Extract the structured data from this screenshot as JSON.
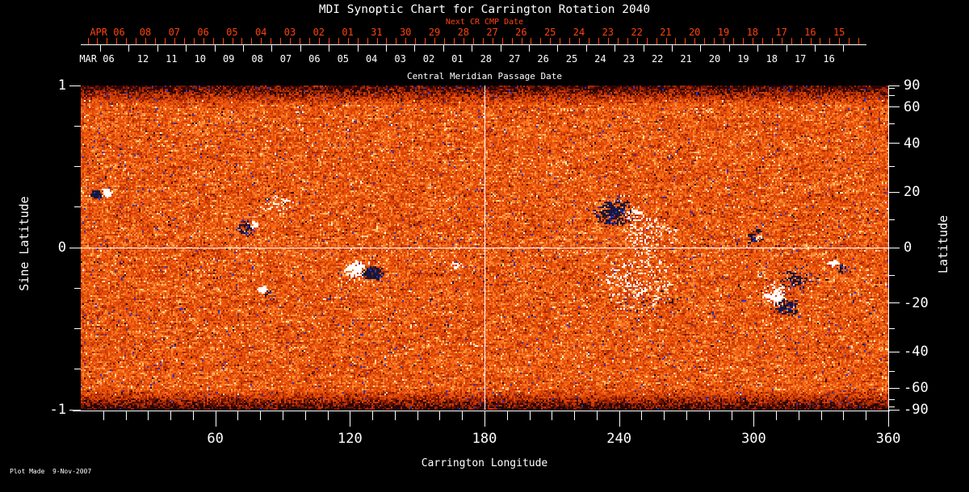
{
  "title": "MDI Synoptic Chart for Carrington Rotation 2040",
  "footer": "Plot Made  9-Nov-2007",
  "colors": {
    "background": "#000000",
    "foreground": "#ffffff",
    "next_cr_axis": "#ff430b"
  },
  "next_cr_axis": {
    "label": "Next CR CMP Date",
    "month_label": "APR 06",
    "day_labels": [
      "08",
      "07",
      "06",
      "05",
      "04",
      "03",
      "02",
      "01",
      "31",
      "30",
      "29",
      "28",
      "27",
      "26",
      "25",
      "24",
      "23",
      "22",
      "21",
      "20",
      "19",
      "18",
      "17",
      "16",
      "15"
    ]
  },
  "cmp_axis": {
    "label": "Central Meridian Passage Date",
    "month_label": "MAR 06",
    "day_labels": [
      "12",
      "11",
      "10",
      "09",
      "08",
      "07",
      "06",
      "05",
      "04",
      "03",
      "02",
      "01",
      "28",
      "27",
      "26",
      "25",
      "24",
      "23",
      "22",
      "21",
      "20",
      "19",
      "18",
      "17",
      "16"
    ]
  },
  "x_axis": {
    "label": "Carrington Longitude",
    "range_deg": [
      0,
      360
    ],
    "major_tick_values": [
      60,
      120,
      180,
      240,
      300,
      360
    ],
    "minor_tick_step_deg": 10
  },
  "y_axis_left": {
    "label": "Sine Latitude",
    "range": [
      -1,
      1
    ],
    "tick_labels": [
      "1",
      "0",
      "-1"
    ],
    "minor_tick_values": [
      0.75,
      0.5,
      0.25,
      -0.25,
      -0.5,
      -0.75
    ]
  },
  "y_axis_right": {
    "label": "Latitude",
    "tick_labels": [
      "90",
      "60",
      "40",
      "20",
      "0",
      "-20",
      "-40",
      "-60",
      "-90"
    ],
    "minor_tick_values": [
      80,
      70,
      50,
      30,
      10,
      -10,
      -30,
      -50,
      -70,
      -80
    ]
  },
  "chart_data": {
    "type": "heatmap",
    "title": "MDI Synoptic Chart for Carrington Rotation 2040",
    "description": "Solar photospheric magnetic field synoptic map; orange mottled quiet-sun field with dark (negative polarity) and white/yellow (positive polarity) active regions; darker streaked bands at both poles; white crosshair at longitude 180 and equator.",
    "x_range_deg": [
      0,
      360
    ],
    "y_range_sine_latitude": [
      -1,
      1
    ],
    "crosshair": {
      "longitude_deg": 180,
      "sine_latitude": 0
    },
    "palette": [
      {
        "max": -1.35,
        "color": "#141840"
      },
      {
        "max": -1.05,
        "color": "#2732c4"
      },
      {
        "max": -0.8,
        "color": "#2a0406"
      },
      {
        "max": -0.55,
        "color": "#6e1402"
      },
      {
        "max": -0.3,
        "color": "#a32602"
      },
      {
        "max": -0.08,
        "color": "#c93a04"
      },
      {
        "max": 0.18,
        "color": "#e04a08"
      },
      {
        "max": 0.42,
        "color": "#ef5c10"
      },
      {
        "max": 0.62,
        "color": "#f8751f"
      },
      {
        "max": 0.8,
        "color": "#fc9440"
      },
      {
        "max": 0.95,
        "color": "#ffc070"
      },
      {
        "max": 1.12,
        "color": "#ffe9a8"
      },
      {
        "max": 9999,
        "color": "#ffffff"
      }
    ],
    "active_regions": [
      {
        "lon": 6.5,
        "sine_lat": 0.33,
        "r_lon": 3.2,
        "r_sine_lat": 0.035,
        "polarity": "negative",
        "density": 0.85,
        "strength": 2.2
      },
      {
        "lon": 11,
        "sine_lat": 0.34,
        "r_lon": 2.8,
        "r_sine_lat": 0.03,
        "polarity": "positive",
        "density": 0.85,
        "strength": 2.2
      },
      {
        "lon": 73.5,
        "sine_lat": 0.12,
        "r_lon": 4.5,
        "r_sine_lat": 0.06,
        "polarity": "negative",
        "density": 0.4,
        "strength": 1.8
      },
      {
        "lon": 77,
        "sine_lat": 0.14,
        "r_lon": 2,
        "r_sine_lat": 0.025,
        "polarity": "positive",
        "density": 0.75,
        "strength": 2.0
      },
      {
        "lon": 87,
        "sine_lat": 0.27,
        "r_lon": 8,
        "r_sine_lat": 0.07,
        "polarity": "positive",
        "density": 0.2,
        "strength": 1.6
      },
      {
        "lon": 84,
        "sine_lat": 0.34,
        "r_lon": 6,
        "r_sine_lat": 0.05,
        "polarity": "negative",
        "density": 0.1,
        "strength": 1.4
      },
      {
        "lon": 80.5,
        "sine_lat": -0.26,
        "r_lon": 2.5,
        "r_sine_lat": 0.03,
        "polarity": "positive",
        "density": 0.85,
        "strength": 2.2
      },
      {
        "lon": 84,
        "sine_lat": -0.3,
        "r_lon": 3,
        "r_sine_lat": 0.035,
        "polarity": "negative",
        "density": 0.3,
        "strength": 1.6
      },
      {
        "lon": 121.5,
        "sine_lat": -0.13,
        "r_lon": 5.5,
        "r_sine_lat": 0.055,
        "polarity": "positive",
        "density": 0.5,
        "strength": 2.0
      },
      {
        "lon": 130,
        "sine_lat": -0.16,
        "r_lon": 5,
        "r_sine_lat": 0.05,
        "polarity": "negative",
        "density": 0.75,
        "strength": 2.2
      },
      {
        "lon": 124,
        "sine_lat": -0.17,
        "r_lon": 10,
        "r_sine_lat": 0.1,
        "polarity": "positive",
        "density": 0.12,
        "strength": 1.5
      },
      {
        "lon": 167,
        "sine_lat": -0.12,
        "r_lon": 4,
        "r_sine_lat": 0.04,
        "polarity": "positive",
        "density": 0.25,
        "strength": 1.5
      },
      {
        "lon": 237,
        "sine_lat": 0.22,
        "r_lon": 9,
        "r_sine_lat": 0.1,
        "polarity": "negative",
        "density": 0.45,
        "strength": 2.0
      },
      {
        "lon": 246,
        "sine_lat": 0.2,
        "r_lon": 5,
        "r_sine_lat": 0.06,
        "polarity": "positive",
        "density": 0.3,
        "strength": 1.6
      },
      {
        "lon": 253,
        "sine_lat": 0.08,
        "r_lon": 13,
        "r_sine_lat": 0.11,
        "polarity": "positive",
        "density": 0.22,
        "strength": 1.7
      },
      {
        "lon": 248,
        "sine_lat": -0.2,
        "r_lon": 19,
        "r_sine_lat": 0.21,
        "polarity": "positive",
        "density": 0.18,
        "strength": 1.7
      },
      {
        "lon": 253,
        "sine_lat": -0.34,
        "r_lon": 14,
        "r_sine_lat": 0.1,
        "polarity": "negative",
        "density": 0.08,
        "strength": 1.4
      },
      {
        "lon": 300,
        "sine_lat": 0.07,
        "r_lon": 5,
        "r_sine_lat": 0.05,
        "polarity": "negative",
        "density": 0.45,
        "strength": 1.9
      },
      {
        "lon": 302,
        "sine_lat": 0.06,
        "r_lon": 1.8,
        "r_sine_lat": 0.02,
        "polarity": "positive",
        "density": 0.85,
        "strength": 2.2
      },
      {
        "lon": 317,
        "sine_lat": -0.19,
        "r_lon": 6.5,
        "r_sine_lat": 0.08,
        "polarity": "negative",
        "density": 0.4,
        "strength": 1.9
      },
      {
        "lon": 309,
        "sine_lat": -0.29,
        "r_lon": 5.5,
        "r_sine_lat": 0.08,
        "polarity": "positive",
        "density": 0.5,
        "strength": 2.1
      },
      {
        "lon": 314,
        "sine_lat": -0.37,
        "r_lon": 7,
        "r_sine_lat": 0.06,
        "polarity": "negative",
        "density": 0.45,
        "strength": 2.0
      },
      {
        "lon": 335,
        "sine_lat": -0.1,
        "r_lon": 3,
        "r_sine_lat": 0.03,
        "polarity": "positive",
        "density": 0.55,
        "strength": 2.0
      },
      {
        "lon": 339,
        "sine_lat": -0.13,
        "r_lon": 3,
        "r_sine_lat": 0.035,
        "polarity": "negative",
        "density": 0.35,
        "strength": 1.7
      }
    ]
  }
}
